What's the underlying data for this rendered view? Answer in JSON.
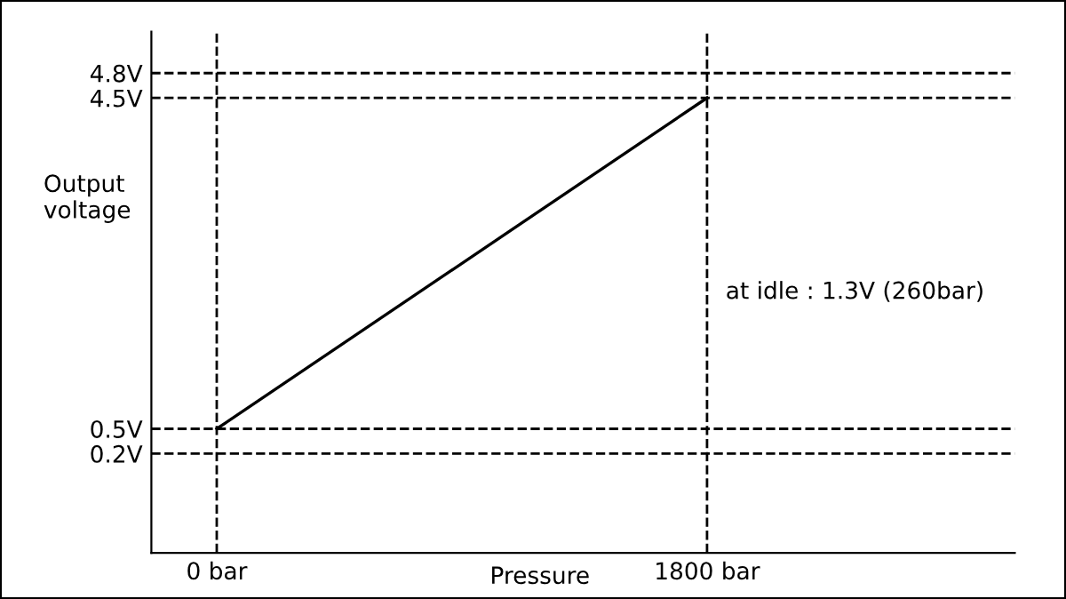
{
  "chart_data": {
    "type": "line",
    "xlabel": "Pressure",
    "ylabel": "Output\nvoltage",
    "x": [
      0,
      1800
    ],
    "series": [
      {
        "color": "#000000",
        "values": [
          0.5,
          4.5
        ]
      }
    ],
    "xlim": [
      -240,
      2930
    ],
    "ylim": [
      -1.0,
      5.3
    ],
    "xticks": [
      {
        "value": 0,
        "label": "0 bar"
      },
      {
        "value": 1800,
        "label": "1800 bar"
      }
    ],
    "yticks": [
      {
        "value": 0.2,
        "label": "0.2V"
      },
      {
        "value": 0.5,
        "label": "0.5V"
      },
      {
        "value": 4.5,
        "label": "4.5V"
      },
      {
        "value": 4.8,
        "label": "4.8V"
      }
    ],
    "ref_lines": [
      {
        "axis": "x",
        "value": 0,
        "line_style": "dashed",
        "color": "#000000"
      },
      {
        "axis": "x",
        "value": 1800,
        "line_style": "dashed",
        "color": "#000000"
      },
      {
        "axis": "y",
        "value": 0.2,
        "line_style": "dashed",
        "color": "#000000"
      },
      {
        "axis": "y",
        "value": 0.5,
        "line_style": "dashed",
        "color": "#000000"
      },
      {
        "axis": "y",
        "value": 4.5,
        "line_style": "dashed",
        "color": "#000000"
      },
      {
        "axis": "y",
        "value": 4.8,
        "line_style": "dashed",
        "color": "#000000"
      }
    ],
    "annotations": [
      "at idle : 1.3V (260bar)"
    ],
    "grid": false,
    "legend": false,
    "marker": "none",
    "line_style": "solid"
  }
}
